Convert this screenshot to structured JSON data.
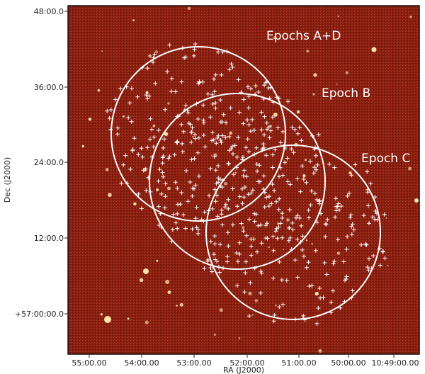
{
  "figure": {
    "xlabel": "RA (J2000)",
    "ylabel": "Dec (J2000)",
    "colors": {
      "background": "#8a1f10",
      "frame": "#111111",
      "marker": "#ffffff",
      "circle": "#ffffff",
      "star": "#ffe2b0"
    }
  },
  "x_ticks": [
    {
      "label": "55:00.00"
    },
    {
      "label": "54:00.00"
    },
    {
      "label": "53:00.00"
    },
    {
      "label": "52:00.00"
    },
    {
      "label": "51:00.00"
    },
    {
      "label": "50:00.00"
    },
    {
      "label": "10:49:00.00"
    }
  ],
  "y_ticks": [
    {
      "label": "48:00.0"
    },
    {
      "label": "36:00.0"
    },
    {
      "label": "24:00.0"
    },
    {
      "label": "12:00.0"
    },
    {
      "label": "+57:00:00.0"
    }
  ],
  "epochs": [
    {
      "label": "Epochs A+D"
    },
    {
      "label": "Epoch B"
    },
    {
      "label": "Epoch C"
    }
  ]
}
